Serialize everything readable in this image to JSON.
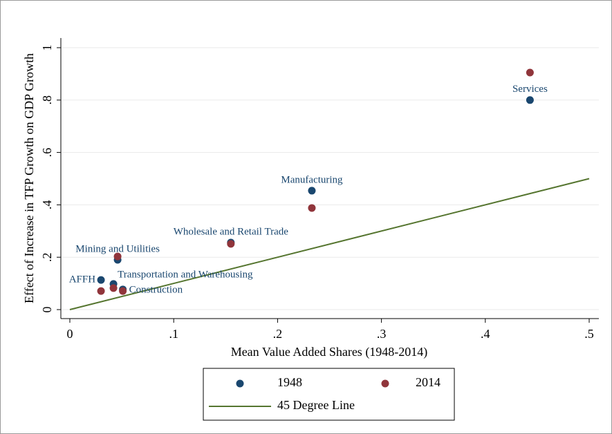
{
  "chart_data": {
    "type": "scatter",
    "xlabel": "Mean Value Added Shares (1948-2014)",
    "ylabel": "Effect of Increase in TFP Growth on GDP Growth",
    "categories": [
      "Services",
      "Manufacturing",
      "Wholesale and Retail Trade",
      "Mining and Utilities",
      "AFFH",
      "Transportation and Warehousing",
      "Construction"
    ],
    "series": [
      {
        "name": "1948",
        "type": "scatter",
        "color": "#1a476f",
        "x": [
          0.443,
          0.233,
          0.155,
          0.046,
          0.03,
          0.042,
          0.051
        ],
        "values": [
          0.8,
          0.454,
          0.256,
          0.19,
          0.113,
          0.098,
          0.077
        ]
      },
      {
        "name": "2014",
        "type": "scatter",
        "color": "#90353b",
        "x": [
          0.443,
          0.233,
          0.155,
          0.046,
          0.03,
          0.042,
          0.051
        ],
        "values": [
          0.905,
          0.388,
          0.251,
          0.203,
          0.071,
          0.082,
          0.071
        ]
      },
      {
        "name": "45 Degree Line",
        "type": "line",
        "color": "#55752f",
        "x": [
          0,
          0.5
        ],
        "values": [
          0,
          0.5
        ]
      }
    ],
    "xlim": [
      0,
      0.5
    ],
    "ylim": [
      0,
      1
    ],
    "xticks": [
      0,
      {
        "value": 0.1,
        "label": ".1"
      },
      {
        "value": 0.2,
        "label": ".2"
      },
      {
        "value": 0.3,
        "label": ".3"
      },
      {
        "value": 0.4,
        "label": ".4"
      },
      {
        "value": 0.5,
        "label": ".5"
      }
    ],
    "yticks": [
      0,
      {
        "value": 0.2,
        "label": ".2"
      },
      {
        "value": 0.4,
        "label": ".4"
      },
      {
        "value": 0.6,
        "label": ".6"
      },
      {
        "value": 0.8,
        "label": ".8"
      },
      1
    ],
    "grid": true
  }
}
